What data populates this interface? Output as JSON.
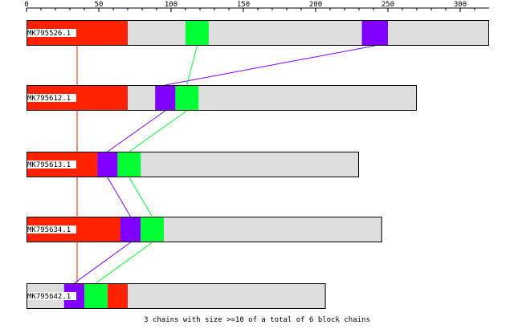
{
  "chart_data": {
    "type": "block-chain-alignment",
    "axis": {
      "ticks": [
        0,
        50,
        100,
        150,
        200,
        250,
        300
      ],
      "max": 320
    },
    "sequences": [
      {
        "name": "MK795526.1",
        "length": 320
      },
      {
        "name": "MK795612.1",
        "length": 270
      },
      {
        "name": "MK795613.1",
        "length": 230
      },
      {
        "name": "MK795634.1",
        "length": 246
      },
      {
        "name": "MK795642.1",
        "length": 207
      }
    ],
    "chains": [
      {
        "color": "#ff2200",
        "blocks": [
          [
            0,
            70
          ],
          [
            0,
            70
          ],
          [
            0,
            49
          ],
          [
            0,
            65
          ],
          [
            56,
            70
          ]
        ]
      },
      {
        "color": "#8000ff",
        "blocks": [
          [
            232,
            250
          ],
          [
            89,
            103
          ],
          [
            49,
            63
          ],
          [
            65,
            79
          ],
          [
            26,
            40
          ]
        ]
      },
      {
        "color": "#00ff33",
        "blocks": [
          [
            110,
            126
          ],
          [
            103,
            119
          ],
          [
            63,
            79
          ],
          [
            79,
            95
          ],
          [
            40,
            56
          ]
        ]
      }
    ],
    "connector_anchor": {
      "#ff2200": 35,
      "#8000ff": "start",
      "#00ff33": "end"
    },
    "colors": {
      "sequence_bar": "#dddddd",
      "bar_outline": "#000000"
    },
    "footer": "3 chains with size >=10 of a total of 6 block chains"
  }
}
